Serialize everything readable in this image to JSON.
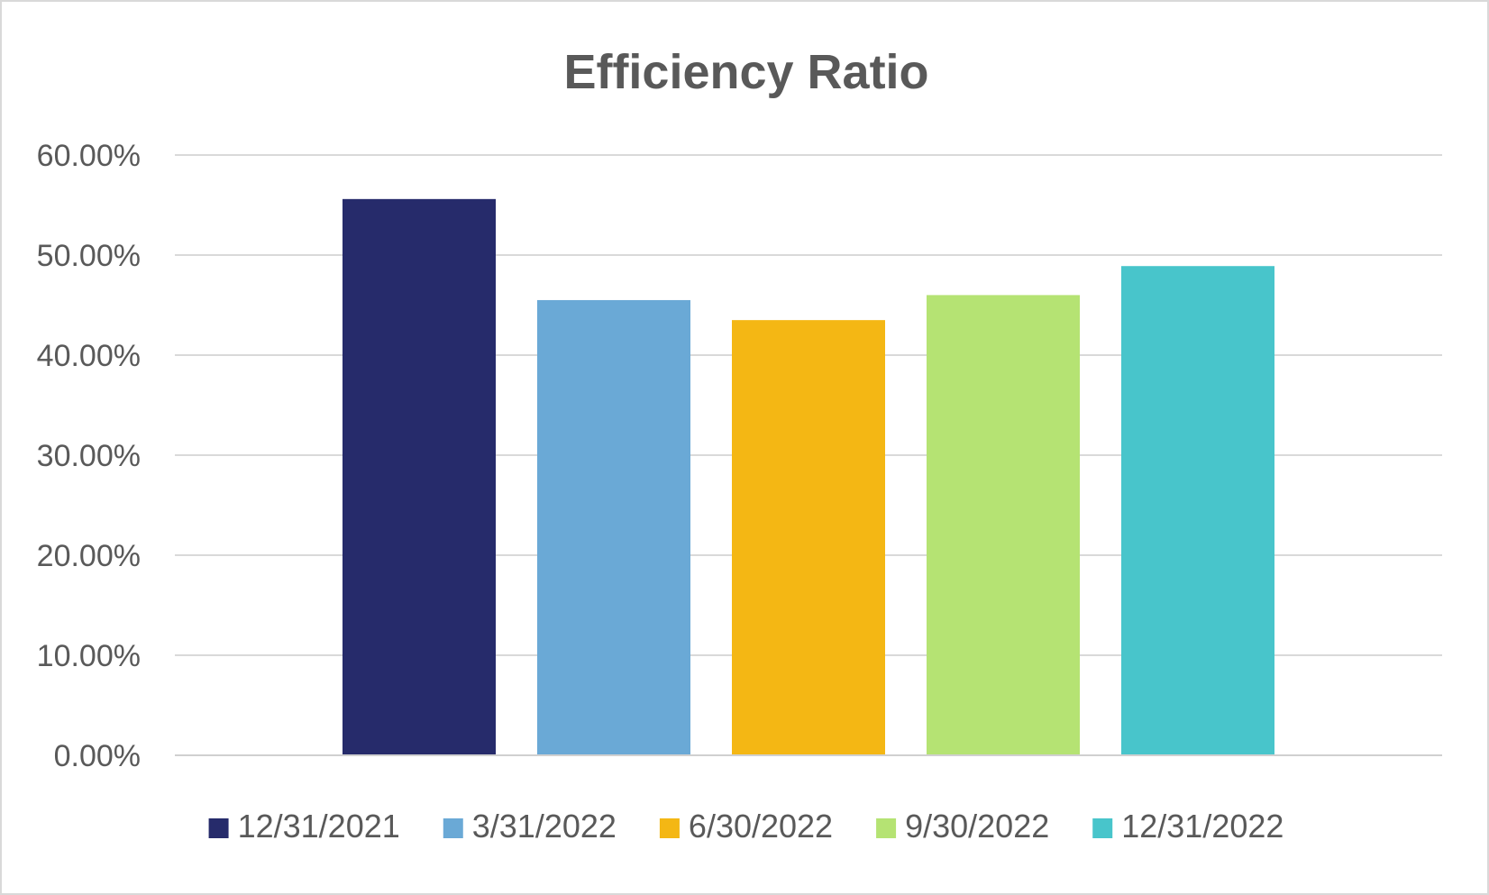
{
  "chart_data": {
    "type": "bar",
    "title": "Efficiency Ratio",
    "xlabel": "",
    "ylabel": "",
    "ylim": [
      0,
      60
    ],
    "y_ticks": [
      0,
      10,
      20,
      30,
      40,
      50,
      60
    ],
    "y_tick_labels": [
      "0.00%",
      "10.00%",
      "20.00%",
      "30.00%",
      "40.00%",
      "50.00%",
      "60.00%"
    ],
    "grid": true,
    "legend_position": "bottom",
    "categories": [
      "12/31/2021",
      "3/31/2022",
      "6/30/2022",
      "9/30/2022",
      "12/31/2022"
    ],
    "values": [
      55.6,
      45.5,
      43.5,
      46.0,
      48.9
    ],
    "colors": [
      "#262b6b",
      "#6aa9d6",
      "#f4b714",
      "#b5e373",
      "#48c5cb"
    ]
  }
}
